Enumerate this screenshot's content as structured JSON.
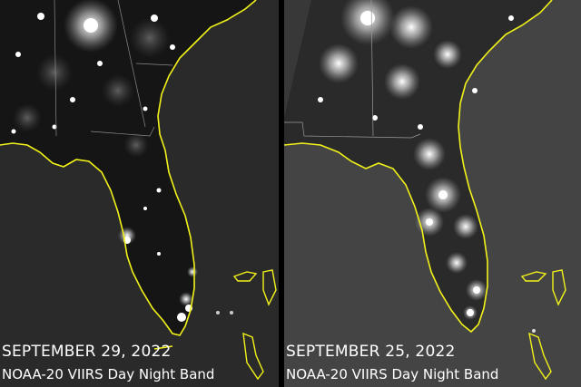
{
  "panels": {
    "left": {
      "date": "SEPTEMBER 29, 2022",
      "instrument": "NOAA-20 VIIRS Day Night Band"
    },
    "right": {
      "date": "SEPTEMBER 25, 2022",
      "instrument": "NOAA-20 VIIRS Day Night Band"
    }
  },
  "colors": {
    "coastline": "#f2f21a",
    "city_lights": "#ffffff",
    "land": "#1c1c1c",
    "ocean": "#2e2e2e"
  }
}
